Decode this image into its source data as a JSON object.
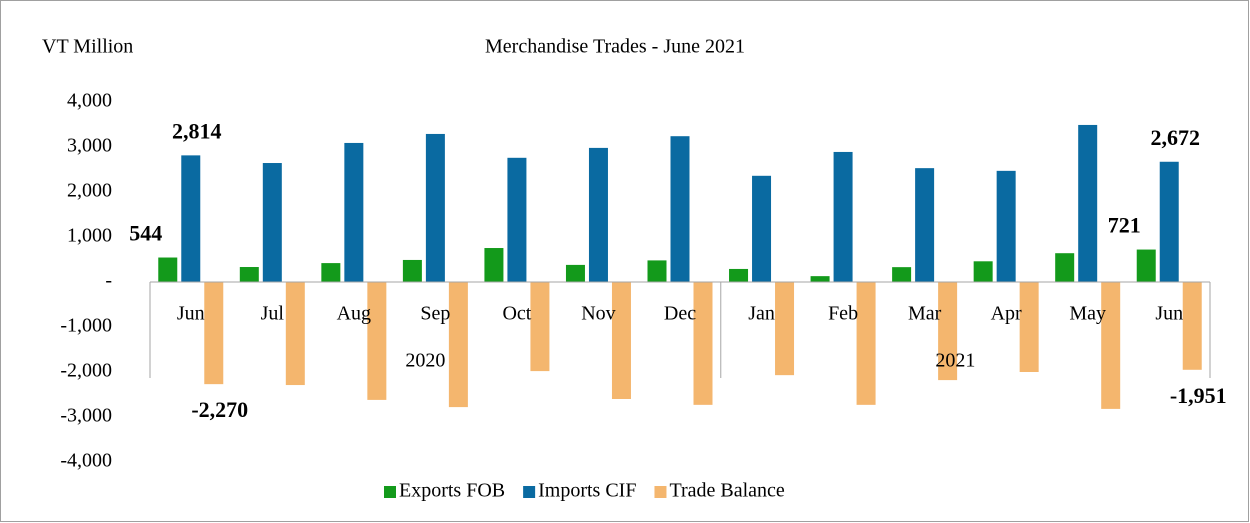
{
  "chart_data": {
    "type": "bar",
    "title": "Merchandise Trades - June 2021",
    "y_label": "VT Million",
    "categories": [
      "Jun",
      "Jul",
      "Aug",
      "Sep",
      "Oct",
      "Nov",
      "Dec",
      "Jan",
      "Feb",
      "Mar",
      "Apr",
      "May",
      "Jun"
    ],
    "groups": [
      {
        "label": "2020",
        "count": 7
      },
      {
        "label": "2021",
        "count": 6
      }
    ],
    "series": [
      {
        "name": "Exports FOB",
        "color": "#139a1b",
        "values": [
          544,
          333,
          420,
          490,
          755,
          380,
          480,
          290,
          130,
          330,
          460,
          640,
          721
        ],
        "value_labels": [
          "544",
          null,
          null,
          null,
          null,
          null,
          null,
          null,
          null,
          null,
          null,
          null,
          "721"
        ]
      },
      {
        "name": "Imports CIF",
        "color": "#0a6aa1",
        "values": [
          2814,
          2644,
          3090,
          3290,
          2760,
          2980,
          3240,
          2360,
          2890,
          2530,
          2470,
          3490,
          2672
        ],
        "value_labels": [
          "2,814",
          null,
          null,
          null,
          null,
          null,
          null,
          null,
          null,
          null,
          null,
          null,
          "2,672"
        ]
      },
      {
        "name": "Trade Balance",
        "color": "#f4b66e",
        "values": [
          -2270,
          -2290,
          -2620,
          -2780,
          -1980,
          -2600,
          -2730,
          -2070,
          -2730,
          -2180,
          -2000,
          -2820,
          -1951
        ],
        "value_labels": [
          "-2,270",
          null,
          null,
          null,
          null,
          null,
          null,
          null,
          null,
          null,
          null,
          null,
          "-1,951"
        ]
      }
    ],
    "ylim": [
      -4000,
      4000
    ],
    "yticks": [
      {
        "value": -4000,
        "label": "-4,000"
      },
      {
        "value": -3000,
        "label": "-3,000"
      },
      {
        "value": -2000,
        "label": "-2,000"
      },
      {
        "value": -1000,
        "label": "-1,000"
      },
      {
        "value": 0,
        "label": "-"
      },
      {
        "value": 1000,
        "label": "1,000"
      },
      {
        "value": 2000,
        "label": "2,000"
      },
      {
        "value": 3000,
        "label": "3,000"
      },
      {
        "value": 4000,
        "label": "4,000"
      }
    ],
    "legend": "bottom"
  }
}
